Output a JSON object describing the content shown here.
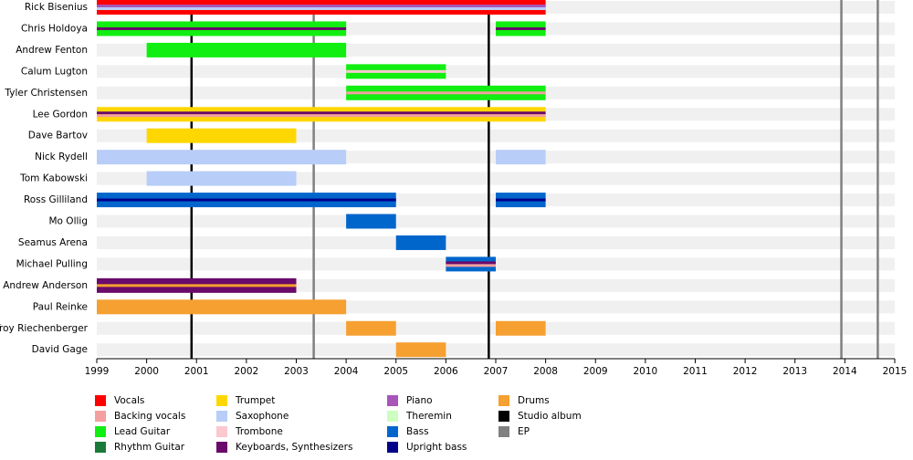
{
  "chart_data": {
    "type": "timeline",
    "xlim": [
      1999,
      2015
    ],
    "xticks": [
      1999,
      2000,
      2001,
      2002,
      2003,
      2004,
      2005,
      2006,
      2007,
      2008,
      2009,
      2010,
      2011,
      2012,
      2013,
      2014,
      2015
    ],
    "legend": [
      {
        "name": "Vocals",
        "color": "#ff0000"
      },
      {
        "name": "Backing vocals",
        "color": "#f4a0a0"
      },
      {
        "name": "Lead Guitar",
        "color": "#11ee11"
      },
      {
        "name": "Rhythm Guitar",
        "color": "#1b7a3a"
      },
      {
        "name": "Trumpet",
        "color": "#ffd700"
      },
      {
        "name": "Saxophone",
        "color": "#b8cdf8"
      },
      {
        "name": "Trombone",
        "color": "#fcc8d0"
      },
      {
        "name": "Keyboards, Synthesizers",
        "color": "#6a0a6a"
      },
      {
        "name": "Piano",
        "color": "#a855b8"
      },
      {
        "name": "Theremin",
        "color": "#ccffc0"
      },
      {
        "name": "Bass",
        "color": "#0066cc"
      },
      {
        "name": "Upright bass",
        "color": "#00008b"
      },
      {
        "name": "Drums",
        "color": "#f5a030"
      },
      {
        "name": "Studio album",
        "color": "#000000"
      },
      {
        "name": "EP",
        "color": "#808080"
      }
    ],
    "members": [
      {
        "name": "Rick Bisenius",
        "bars": [
          {
            "start": 1999,
            "end": 2008,
            "roles": [
              "Vocals",
              "Piano",
              "Saxophone"
            ]
          }
        ]
      },
      {
        "name": "Chris Holdoya",
        "bars": [
          {
            "start": 1999,
            "end": 2004,
            "roles": [
              "Lead Guitar",
              "Keyboards, Synthesizers"
            ]
          },
          {
            "start": 2007,
            "end": 2008,
            "roles": [
              "Lead Guitar",
              "Keyboards, Synthesizers"
            ]
          }
        ]
      },
      {
        "name": "Andrew Fenton",
        "bars": [
          {
            "start": 2000,
            "end": 2004,
            "roles": [
              "Lead Guitar"
            ]
          }
        ]
      },
      {
        "name": "Calum Lugton",
        "bars": [
          {
            "start": 2004,
            "end": 2006,
            "roles": [
              "Lead Guitar",
              "Trombone"
            ]
          }
        ]
      },
      {
        "name": "Tyler Christensen",
        "bars": [
          {
            "start": 2004,
            "end": 2008,
            "roles": [
              "Lead Guitar",
              "Backing vocals"
            ]
          }
        ]
      },
      {
        "name": "Lee Gordon",
        "bars": [
          {
            "start": 1999,
            "end": 2008,
            "roles": [
              "Trumpet",
              "Keyboards, Synthesizers",
              "Backing vocals"
            ]
          }
        ]
      },
      {
        "name": "Dave Bartov",
        "bars": [
          {
            "start": 2000,
            "end": 2003,
            "roles": [
              "Trumpet"
            ]
          }
        ]
      },
      {
        "name": "Nick Rydell",
        "bars": [
          {
            "start": 1999,
            "end": 2004,
            "roles": [
              "Saxophone"
            ]
          },
          {
            "start": 2007,
            "end": 2008,
            "roles": [
              "Saxophone"
            ]
          }
        ]
      },
      {
        "name": "Tom Kabowski",
        "bars": [
          {
            "start": 2000,
            "end": 2003,
            "roles": [
              "Saxophone"
            ]
          }
        ]
      },
      {
        "name": "Ross Gilliland",
        "bars": [
          {
            "start": 1999,
            "end": 2005,
            "roles": [
              "Bass",
              "Upright bass"
            ]
          },
          {
            "start": 2007,
            "end": 2008,
            "roles": [
              "Bass",
              "Upright bass"
            ]
          }
        ]
      },
      {
        "name": "Mo Ollig",
        "bars": [
          {
            "start": 2004,
            "end": 2005,
            "roles": [
              "Bass"
            ]
          }
        ]
      },
      {
        "name": "Seamus Arena",
        "bars": [
          {
            "start": 2005,
            "end": 2006,
            "roles": [
              "Bass"
            ]
          }
        ]
      },
      {
        "name": "Michael Pulling",
        "bars": [
          {
            "start": 2006,
            "end": 2007,
            "roles": [
              "Bass",
              "Keyboards, Synthesizers",
              "Backing vocals"
            ]
          }
        ]
      },
      {
        "name": "Andrew Anderson",
        "bars": [
          {
            "start": 1999,
            "end": 2003,
            "roles": [
              "Keyboards, Synthesizers",
              "Drums"
            ]
          }
        ]
      },
      {
        "name": "Paul Reinke",
        "bars": [
          {
            "start": 1999,
            "end": 2004,
            "roles": [
              "Drums"
            ]
          }
        ]
      },
      {
        "name": "Troy Riechenberger",
        "bars": [
          {
            "start": 2004,
            "end": 2005,
            "roles": [
              "Drums"
            ]
          },
          {
            "start": 2007,
            "end": 2008,
            "roles": [
              "Drums"
            ]
          }
        ]
      },
      {
        "name": "David Gage",
        "bars": [
          {
            "start": 2005,
            "end": 2006,
            "roles": [
              "Drums"
            ]
          }
        ]
      }
    ],
    "events": [
      {
        "x": 2000.9,
        "role": "Studio album"
      },
      {
        "x": 2006.86,
        "role": "Studio album"
      },
      {
        "x": 2003.35,
        "role": "EP"
      },
      {
        "x": 2013.93,
        "role": "EP"
      },
      {
        "x": 2014.66,
        "role": "EP"
      }
    ]
  }
}
